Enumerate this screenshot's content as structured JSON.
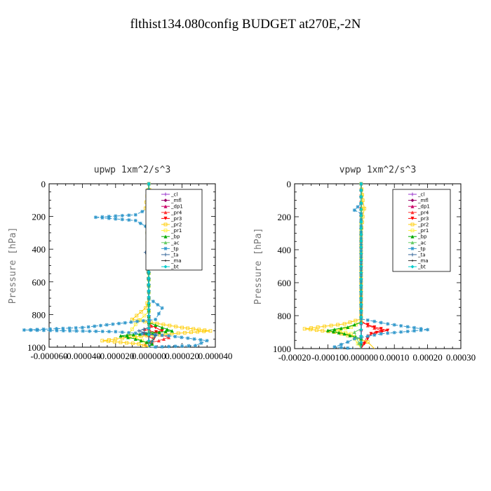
{
  "figure": {
    "title": "flthist134.080config  BUDGET at270E,-2N"
  },
  "chart_data": [
    {
      "type": "line",
      "title": "upwp   1xm^2/s^3",
      "ylabel": "Pressure [hPa]",
      "xlim": [
        -6e-05,
        4e-05
      ],
      "ylim": [
        0,
        1000
      ],
      "y_inverted": true,
      "xticks": [
        -6e-05,
        -4e-05,
        -2e-05,
        0.0,
        2e-05,
        4e-05
      ],
      "xtick_labels": [
        "-0.000060",
        "-0.000040",
        "-0.000020",
        "0.000000",
        "0.000020",
        "0.000040"
      ],
      "yticks": [
        0,
        200,
        400,
        600,
        800,
        1000
      ],
      "ytick_labels": [
        "0",
        "200",
        "400",
        "600",
        "800",
        "1000"
      ],
      "legend_position": "top-right",
      "series": [
        {
          "name": "_cl",
          "color": "#9933cc",
          "points": [
            [
              0,
              0
            ],
            [
              0,
              1000
            ]
          ]
        },
        {
          "name": "_mfl",
          "color": "#990066",
          "points": [
            [
              0,
              0
            ],
            [
              0,
              1000
            ]
          ]
        },
        {
          "name": "_dp1",
          "color": "#cc0066",
          "points": [
            [
              0,
              0
            ],
            [
              0,
              1000
            ]
          ]
        },
        {
          "name": "_pr4",
          "color": "#ff3333",
          "points": [
            [
              0,
              0
            ],
            [
              0,
              850
            ],
            [
              1.5e-06,
              870
            ],
            [
              -2.5e-06,
              890
            ],
            [
              4e-06,
              910
            ],
            [
              1.2e-05,
              940
            ],
            [
              6e-06,
              960
            ],
            [
              -2e-06,
              980
            ],
            [
              0,
              1000
            ]
          ]
        },
        {
          "name": "_pr3",
          "color": "#ff0000",
          "points": [
            [
              0,
              0
            ],
            [
              0,
              860
            ],
            [
              4e-06,
              880
            ],
            [
              8e-06,
              900
            ],
            [
              -3e-06,
              920
            ],
            [
              3e-06,
              950
            ],
            [
              0,
              970
            ],
            [
              0,
              1000
            ]
          ]
        },
        {
          "name": "_pr2",
          "color": "#ffcc00",
          "points": [
            [
              0,
              0
            ],
            [
              -2e-06,
              150
            ],
            [
              8e-06,
              200
            ],
            [
              3e-06,
              250
            ],
            [
              -1e-06,
              300
            ],
            [
              0,
              700
            ],
            [
              -2e-06,
              760
            ],
            [
              -1e-05,
              830
            ],
            [
              2e-05,
              880
            ],
            [
              3.7e-05,
              900
            ],
            [
              1e-05,
              920
            ],
            [
              -1.2e-05,
              940
            ],
            [
              -2.8e-05,
              960
            ],
            [
              -6e-06,
              980
            ],
            [
              0,
              1000
            ]
          ]
        },
        {
          "name": "_pr1",
          "color": "#ffee33",
          "points": [
            [
              0,
              0
            ],
            [
              2e-06,
              180
            ],
            [
              9e-06,
              220
            ],
            [
              4e-06,
              260
            ],
            [
              0,
              350
            ],
            [
              0,
              780
            ],
            [
              -8e-06,
              860
            ],
            [
              -1.2e-05,
              920
            ],
            [
              -4e-06,
              960
            ],
            [
              0,
              1000
            ]
          ]
        },
        {
          "name": "_bp",
          "color": "#00aa00",
          "points": [
            [
              0,
              0
            ],
            [
              0,
              850
            ],
            [
              8e-06,
              880
            ],
            [
              1.4e-05,
              900
            ],
            [
              -1.7e-05,
              930
            ],
            [
              -8e-06,
              950
            ],
            [
              2e-06,
              980
            ],
            [
              0,
              1000
            ]
          ]
        },
        {
          "name": "_ac",
          "color": "#66cc66",
          "points": [
            [
              0,
              0
            ],
            [
              0,
              900
            ],
            [
              4e-06,
              920
            ],
            [
              0,
              1000
            ]
          ]
        },
        {
          "name": "_tp",
          "color": "#3399cc",
          "points": [
            [
              0,
              0
            ],
            [
              0,
              150
            ],
            [
              -8e-06,
              190
            ],
            [
              -3.2e-05,
              205
            ],
            [
              -8e-06,
              225
            ],
            [
              -2e-06,
              260
            ],
            [
              -1e-06,
              300
            ],
            [
              0,
              700
            ],
            [
              8e-06,
              760
            ],
            [
              4e-06,
              830
            ],
            [
              -4e-05,
              880
            ],
            [
              -7.5e-05,
              895
            ],
            [
              -2e-05,
              905
            ],
            [
              1.2e-05,
              930
            ],
            [
              3.5e-05,
              960
            ],
            [
              2.8e-05,
              990
            ],
            [
              0,
              1000
            ]
          ]
        },
        {
          "name": "_ta",
          "color": "#336699",
          "points": [
            [
              0,
              0
            ],
            [
              0,
              410
            ],
            [
              -2e-06,
              420
            ],
            [
              0,
              430
            ],
            [
              0,
              880
            ],
            [
              -6e-06,
              900
            ],
            [
              4e-06,
              930
            ],
            [
              0,
              1000
            ]
          ]
        },
        {
          "name": "_ma",
          "color": "#333333",
          "points": [
            [
              0,
              0
            ],
            [
              0,
              1000
            ]
          ]
        },
        {
          "name": "_bt",
          "color": "#00cccc",
          "points": [
            [
              0,
              0
            ],
            [
              0,
              1000
            ]
          ]
        }
      ]
    },
    {
      "type": "line",
      "title": "vpwp   1xm^2/s^3",
      "ylabel": "Pressure [hPa]",
      "xlim": [
        -0.0002,
        0.0003
      ],
      "ylim": [
        0,
        1000
      ],
      "y_inverted": true,
      "xticks": [
        -0.0002,
        -0.0001,
        0.0,
        0.0001,
        0.0002,
        0.0003
      ],
      "xtick_labels": [
        "-0.00020",
        "-0.00010",
        "0.000000",
        "0.00010",
        "0.00020",
        "0.00030"
      ],
      "yticks": [
        0,
        200,
        400,
        600,
        800,
        1000
      ],
      "ytick_labels": [
        "0",
        "200",
        "400",
        "600",
        "800",
        "1000"
      ],
      "legend_position": "top-right",
      "series": [
        {
          "name": "_cl",
          "color": "#9933cc",
          "points": [
            [
              0,
              0
            ],
            [
              0,
              1000
            ]
          ]
        },
        {
          "name": "_mfl",
          "color": "#990066",
          "points": [
            [
              0,
              0
            ],
            [
              0,
              1000
            ]
          ]
        },
        {
          "name": "_dp1",
          "color": "#cc0066",
          "points": [
            [
              0,
              0
            ],
            [
              0,
              1000
            ]
          ]
        },
        {
          "name": "_pr4",
          "color": "#ff3333",
          "points": [
            [
              0,
              0
            ],
            [
              0,
              830
            ],
            [
              2e-05,
              860
            ],
            [
              6e-05,
              890
            ],
            [
              2e-05,
              920
            ],
            [
              0,
              1000
            ]
          ]
        },
        {
          "name": "_pr3",
          "color": "#ff0000",
          "points": [
            [
              0,
              0
            ],
            [
              0,
              840
            ],
            [
              4e-05,
              870
            ],
            [
              8e-05,
              890
            ],
            [
              3e-05,
              910
            ],
            [
              0,
              1000
            ]
          ]
        },
        {
          "name": "_pr2",
          "color": "#ffcc00",
          "points": [
            [
              0,
              0
            ],
            [
              5e-06,
              100
            ],
            [
              1e-05,
              150
            ],
            [
              5e-06,
              200
            ],
            [
              0,
              300
            ],
            [
              0,
              820
            ],
            [
              -5e-05,
              850
            ],
            [
              -0.00017,
              880
            ],
            [
              -8e-05,
              900
            ],
            [
              -2e-05,
              930
            ],
            [
              2e-05,
              960
            ],
            [
              4e-05,
              1000
            ]
          ]
        },
        {
          "name": "_pr1",
          "color": "#ffee33",
          "points": [
            [
              0,
              0
            ],
            [
              3e-06,
              150
            ],
            [
              0,
              250
            ],
            [
              0,
              840
            ],
            [
              -3e-05,
              870
            ],
            [
              -8e-05,
              890
            ],
            [
              -3e-05,
              910
            ],
            [
              0,
              1000
            ]
          ]
        },
        {
          "name": "_bp",
          "color": "#00aa00",
          "points": [
            [
              0,
              0
            ],
            [
              0,
              840
            ],
            [
              -4e-05,
              870
            ],
            [
              -0.0001,
              890
            ],
            [
              -5e-05,
              910
            ],
            [
              0,
              940
            ],
            [
              0,
              1000
            ]
          ]
        },
        {
          "name": "_ac",
          "color": "#66cc66",
          "points": [
            [
              0,
              0
            ],
            [
              0,
              880
            ],
            [
              -2e-05,
              900
            ],
            [
              0,
              1000
            ]
          ]
        },
        {
          "name": "_tp",
          "color": "#3399cc",
          "points": [
            [
              0,
              0
            ],
            [
              0,
              120
            ],
            [
              -1e-05,
              140
            ],
            [
              -2e-05,
              160
            ],
            [
              0,
              180
            ],
            [
              0,
              820
            ],
            [
              8e-05,
              850
            ],
            [
              0.0002,
              885
            ],
            [
              6e-05,
              910
            ],
            [
              -2e-05,
              940
            ],
            [
              -4e-05,
              960
            ],
            [
              -8e-05,
              990
            ],
            [
              -2e-05,
              1000
            ]
          ]
        },
        {
          "name": "_ta",
          "color": "#336699",
          "points": [
            [
              0,
              0
            ],
            [
              0,
              1000
            ]
          ]
        },
        {
          "name": "_ma",
          "color": "#333333",
          "points": [
            [
              0,
              0
            ],
            [
              0,
              1000
            ]
          ]
        },
        {
          "name": "_bt",
          "color": "#00cccc",
          "points": [
            [
              0,
              0
            ],
            [
              0,
              1000
            ]
          ]
        }
      ]
    }
  ]
}
